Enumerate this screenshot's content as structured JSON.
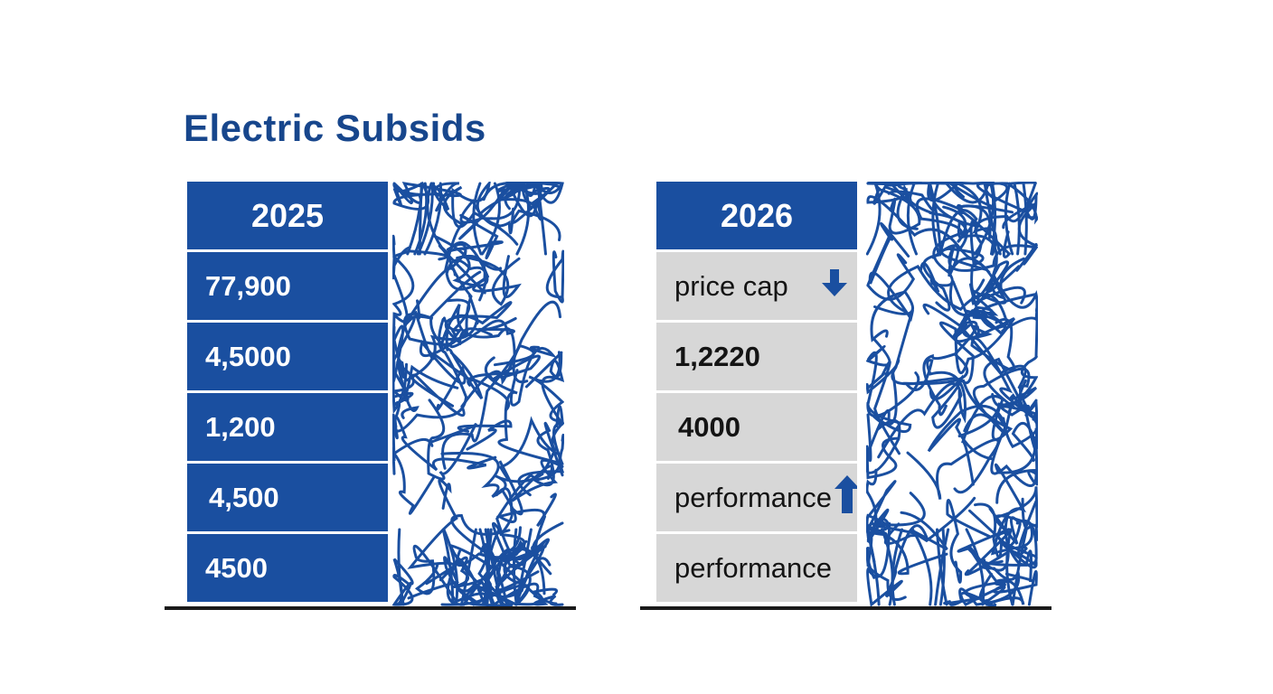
{
  "title": "Electric Subsids",
  "columns": [
    {
      "header": "2025",
      "rows": [
        {
          "text": "77,900"
        },
        {
          "text": "4,5000"
        },
        {
          "text": "1,200"
        },
        {
          "text": "4,500"
        },
        {
          "text": "4500"
        }
      ]
    },
    {
      "header": "2026",
      "rows": [
        {
          "text": "price cap",
          "icon": "arrow-down-icon"
        },
        {
          "text": "1,2220"
        },
        {
          "text": "4000"
        },
        {
          "text": "performance",
          "icon": "arrow-up-icon"
        },
        {
          "text": "performance"
        }
      ]
    }
  ],
  "colors": {
    "accent": "#1a4fa0",
    "title": "#17468c",
    "gray_cell": "#d7d7d7",
    "baseline": "#1a1a1a"
  }
}
